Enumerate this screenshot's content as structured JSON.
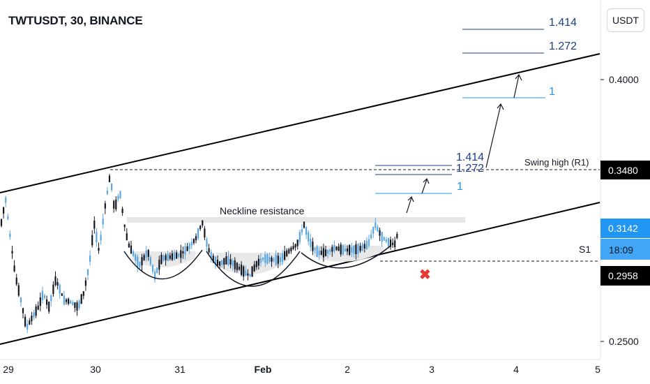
{
  "header": {
    "title": "TWTUSDT, 30, BINANCE",
    "unit_button": "USDT"
  },
  "chart_data": {
    "type": "candlestick",
    "title": "TWTUSDT, 30, BINANCE",
    "x_ticks": [
      "29",
      "30",
      "31",
      "Feb",
      "2",
      "3",
      "4",
      "5"
    ],
    "y_ticks": [
      "0.4000",
      "0.2500"
    ],
    "ylim": [
      0.245,
      0.438
    ],
    "price_labels": {
      "swing_high": "0.3480",
      "last": "0.3142",
      "countdown": "18:09",
      "support": "0.2958"
    },
    "price_label_colors": {
      "dark": "#000000",
      "accent": "#2196f3",
      "countdown_bg": "#42a5f5"
    },
    "annotations": {
      "swing_high_label": "Swing high (R1)",
      "neckline_label": "Neckline resistance",
      "support_label": "S1"
    },
    "fib_levels_small": [
      "1.414",
      "1.272",
      "1"
    ],
    "fib_levels_large": [
      "1.414",
      "1.272",
      "1"
    ],
    "series": [
      {
        "name": "",
        "color_up": "#5aa6e4",
        "color_down": "#131722"
      }
    ],
    "channel": {
      "upper": [
        [
          0.0,
          0.331
        ],
        [
          1.0,
          0.4125
        ]
      ],
      "lower": [
        [
          0.0,
          0.2528
        ],
        [
          1.0,
          0.3355
        ]
      ]
    },
    "swing_high_level": 0.348,
    "support_level": 0.2958,
    "neckline_level": 0.3215,
    "invalidation_marker": "✖",
    "grid": false
  }
}
